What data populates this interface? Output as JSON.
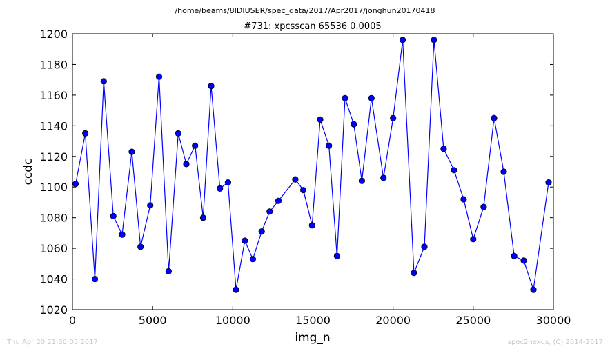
{
  "figure": {
    "suptitle": "/home/beams/8IDIUSER/spec_data/2017/Apr2017/jonghun20170418",
    "footer_left": "Thu Apr 20 21:30:05 2017",
    "footer_right": "spec2nexus, (C) 2014-2017"
  },
  "chart_data": {
    "type": "line",
    "title": "#731: xpcsscan 65536 0.0005",
    "xlabel": "img_n",
    "ylabel": "ccdc",
    "xlim": [
      0,
      30000
    ],
    "ylim": [
      1020,
      1200
    ],
    "xticks": [
      0,
      5000,
      10000,
      15000,
      20000,
      25000,
      30000
    ],
    "yticks": [
      1020,
      1040,
      1060,
      1080,
      1100,
      1120,
      1140,
      1160,
      1180,
      1200
    ],
    "grid": false,
    "line_color": "#0000ff",
    "marker": "circle",
    "series": [
      {
        "x": [
          200,
          800,
          1400,
          1950,
          2550,
          3100,
          3700,
          4250,
          4850,
          5400,
          6000,
          6600,
          7100,
          7650,
          8150,
          8650,
          9200,
          9700,
          10200,
          10750,
          11250,
          11800,
          12300,
          12850,
          13900,
          14400,
          14950,
          15450,
          16000,
          16500,
          17000,
          17550,
          18050,
          18650,
          19400,
          20000,
          20600,
          21300,
          21950,
          22550,
          23150,
          23800,
          24400,
          25000,
          25650,
          26300,
          26900,
          27550,
          28150,
          28750,
          29700
        ],
        "y": [
          1102,
          1135,
          1040,
          1169,
          1081,
          1069,
          1123,
          1061,
          1088,
          1172,
          1045,
          1135,
          1115,
          1127,
          1080,
          1166,
          1099,
          1103,
          1033,
          1065,
          1053,
          1071,
          1084,
          1091,
          1105,
          1098,
          1075,
          1144,
          1127,
          1055,
          1158,
          1141,
          1104,
          1158,
          1106,
          1145,
          1196,
          1044,
          1061,
          1196,
          1125,
          1111,
          1092,
          1066,
          1087,
          1145,
          1110,
          1055,
          1052,
          1033,
          1103
        ]
      }
    ]
  }
}
